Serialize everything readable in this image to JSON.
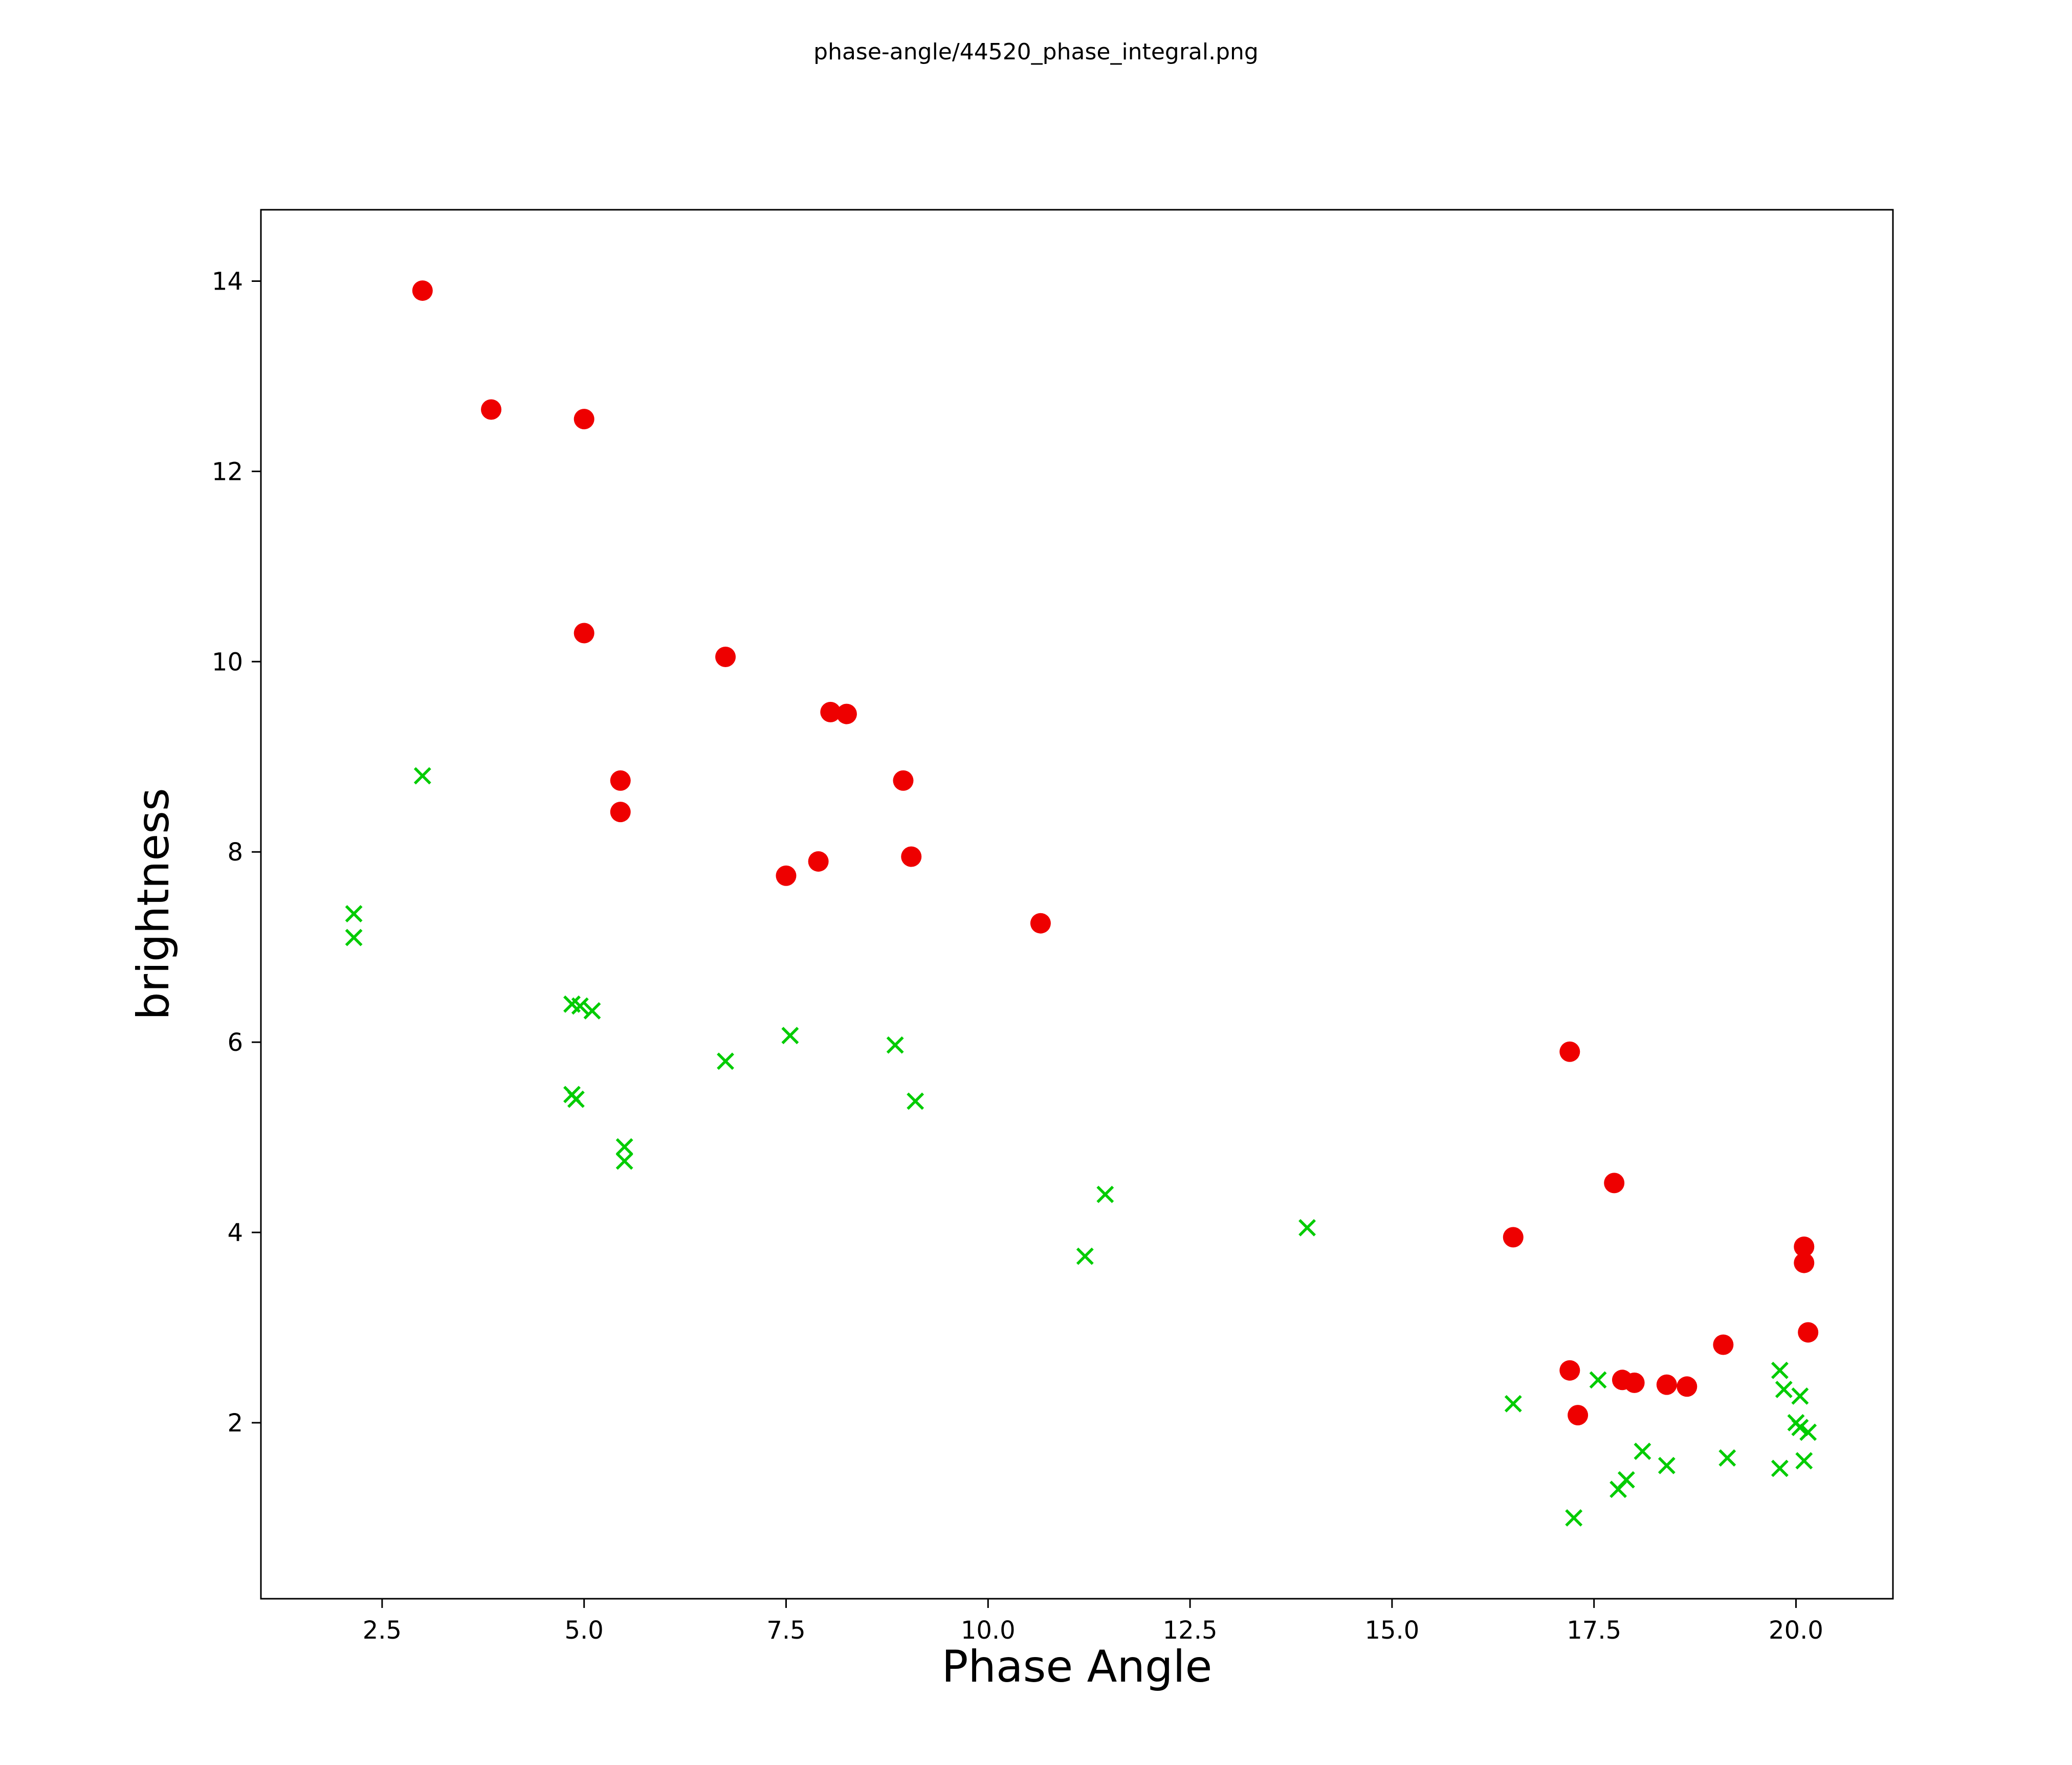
{
  "figure": {
    "title": "phase-angle/44520_phase_integral.png"
  },
  "chart_data": {
    "type": "scatter",
    "title": "phase-angle/44520_phase_integral.png",
    "xlabel": "Phase Angle",
    "ylabel": "brightness",
    "xlim": [
      1.0,
      21.2
    ],
    "ylim": [
      0.15,
      14.75
    ],
    "grid": false,
    "legend_position": "none",
    "xticks": [
      2.5,
      5.0,
      7.5,
      10.0,
      12.5,
      15.0,
      17.5,
      20.0
    ],
    "xtick_labels": [
      "2.5",
      "5.0",
      "7.5",
      "10.0",
      "12.5",
      "15.0",
      "17.5",
      "20.0"
    ],
    "yticks": [
      2,
      4,
      6,
      8,
      10,
      12,
      14
    ],
    "ytick_labels": [
      "2",
      "4",
      "6",
      "8",
      "10",
      "12",
      "14"
    ],
    "series": [
      {
        "name": "red-circles",
        "marker": "circle",
        "color": "#ee0000",
        "marker_radius": 20,
        "points": [
          [
            3.0,
            13.9
          ],
          [
            3.85,
            12.65
          ],
          [
            5.0,
            12.55
          ],
          [
            5.0,
            10.3
          ],
          [
            6.75,
            10.05
          ],
          [
            8.05,
            9.47
          ],
          [
            8.25,
            9.45
          ],
          [
            5.45,
            8.75
          ],
          [
            8.95,
            8.75
          ],
          [
            5.45,
            8.42
          ],
          [
            9.05,
            7.95
          ],
          [
            7.9,
            7.9
          ],
          [
            7.5,
            7.75
          ],
          [
            10.65,
            7.25
          ],
          [
            17.2,
            5.9
          ],
          [
            17.75,
            4.52
          ],
          [
            16.5,
            3.95
          ],
          [
            20.1,
            3.85
          ],
          [
            20.1,
            3.68
          ],
          [
            20.15,
            2.95
          ],
          [
            19.1,
            2.82
          ],
          [
            17.2,
            2.55
          ],
          [
            17.85,
            2.45
          ],
          [
            18.0,
            2.42
          ],
          [
            18.4,
            2.4
          ],
          [
            18.65,
            2.38
          ],
          [
            17.3,
            2.08
          ]
        ]
      },
      {
        "name": "green-crosses",
        "marker": "x",
        "color": "#00cc00",
        "marker_halfsize": 15,
        "points": [
          [
            3.0,
            8.8
          ],
          [
            2.15,
            7.35
          ],
          [
            2.15,
            7.1
          ],
          [
            4.85,
            6.4
          ],
          [
            4.95,
            6.38
          ],
          [
            5.1,
            6.33
          ],
          [
            7.55,
            6.07
          ],
          [
            8.85,
            5.97
          ],
          [
            6.75,
            5.8
          ],
          [
            4.85,
            5.45
          ],
          [
            4.9,
            5.4
          ],
          [
            9.1,
            5.38
          ],
          [
            5.5,
            4.9
          ],
          [
            5.5,
            4.75
          ],
          [
            11.45,
            4.4
          ],
          [
            13.95,
            4.05
          ],
          [
            11.2,
            3.75
          ],
          [
            19.8,
            2.55
          ],
          [
            17.55,
            2.45
          ],
          [
            19.85,
            2.35
          ],
          [
            20.05,
            2.28
          ],
          [
            16.5,
            2.2
          ],
          [
            20.0,
            2.0
          ],
          [
            20.05,
            1.95
          ],
          [
            20.15,
            1.9
          ],
          [
            18.1,
            1.7
          ],
          [
            19.15,
            1.63
          ],
          [
            20.1,
            1.6
          ],
          [
            18.4,
            1.55
          ],
          [
            19.8,
            1.52
          ],
          [
            17.9,
            1.4
          ],
          [
            17.8,
            1.3
          ],
          [
            17.25,
            1.0
          ]
        ]
      }
    ]
  }
}
